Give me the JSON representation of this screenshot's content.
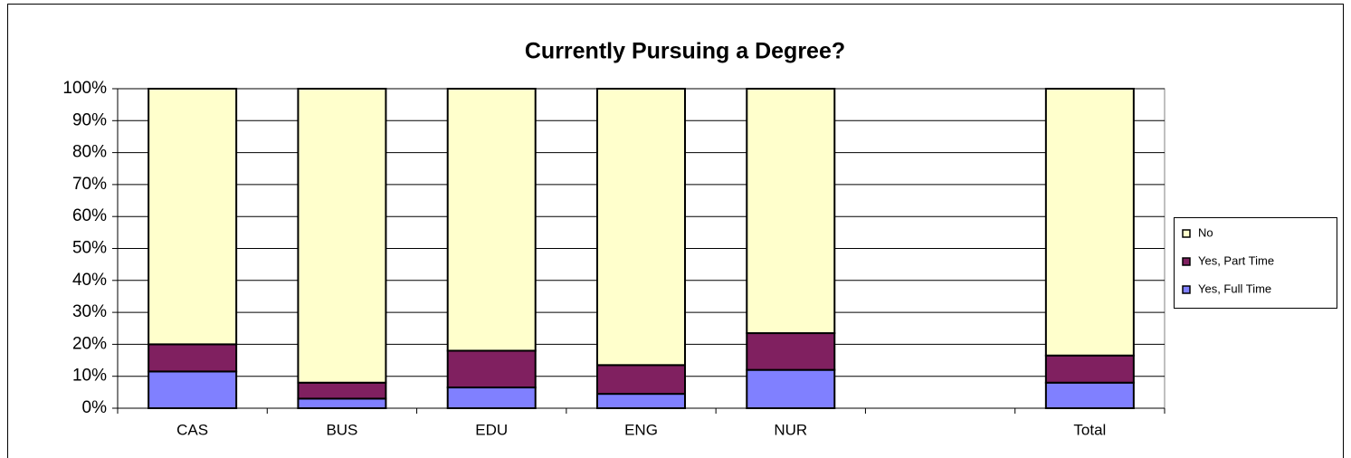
{
  "chart_data": {
    "type": "stacked_bar",
    "title": "Currently Pursuing a Degree?",
    "categories": [
      "CAS",
      "BUS",
      "EDU",
      "ENG",
      "NUR",
      null,
      "Total"
    ],
    "series": [
      {
        "name": "Yes, Full Time",
        "color": "#8080ff",
        "values": [
          11.5,
          3,
          6.5,
          4.5,
          12,
          null,
          8
        ]
      },
      {
        "name": "Yes, Part Time",
        "color": "#802060",
        "values": [
          8.5,
          5,
          11.5,
          9,
          11.5,
          null,
          8.5
        ]
      },
      {
        "name": "No",
        "color": "#ffffcc",
        "values": [
          80,
          92,
          82,
          86.5,
          76.5,
          null,
          83.5
        ]
      }
    ],
    "ylim": [
      0,
      100
    ],
    "yticks": [
      {
        "value": 0,
        "label": "0%"
      },
      {
        "value": 10,
        "label": "10%"
      },
      {
        "value": 20,
        "label": "20%"
      },
      {
        "value": 30,
        "label": "30%"
      },
      {
        "value": 40,
        "label": "40%"
      },
      {
        "value": 50,
        "label": "50%"
      },
      {
        "value": 60,
        "label": "60%"
      },
      {
        "value": 70,
        "label": "70%"
      },
      {
        "value": 80,
        "label": "80%"
      },
      {
        "value": 90,
        "label": "90%"
      },
      {
        "value": 100,
        "label": "100%"
      }
    ],
    "grid": true,
    "legend": "right"
  }
}
